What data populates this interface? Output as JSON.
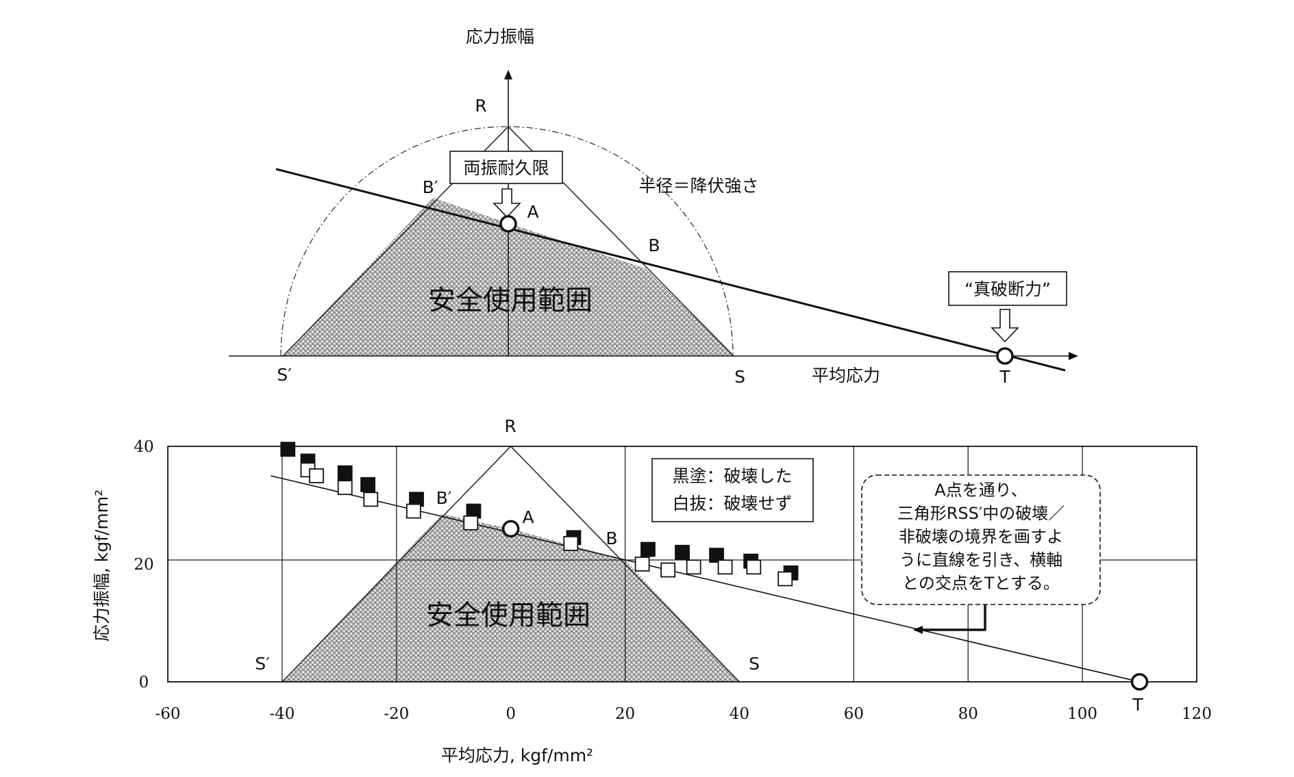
{
  "colors": {
    "ink": "#111111",
    "grid": "#222222",
    "shade": "#8c8c8c",
    "fill_black": "#111111",
    "fill_white": "#ffffff"
  },
  "concept": {
    "y_axis_label": "応力振幅",
    "x_axis_label": "平均応力",
    "points": {
      "R": "R",
      "B_prime": "B′",
      "A": "A",
      "B": "B",
      "S_prime": "S′",
      "S": "S",
      "T": "T"
    },
    "box_fatigue_limit": "両振耐久限",
    "box_true_fracture": "“真破断力”",
    "radius_label": "半径＝降伏強さ",
    "safe_zone": "安全使用範囲"
  },
  "chart_data": {
    "type": "scatter",
    "xlabel": "平均応力, kgf/mm²",
    "ylabel": "応力振幅, kgf/mm²",
    "xlim": [
      -60,
      120
    ],
    "ylim": [
      0,
      40
    ],
    "x_ticks": [
      "-60",
      "-40",
      "-20",
      "0",
      "20",
      "40",
      "60",
      "80",
      "100",
      "120"
    ],
    "y_ticks": [
      "40",
      "20",
      "0"
    ],
    "series": [
      {
        "name": "黒塗：破壊した",
        "marker": "filled-square",
        "x": [
          -39,
          -35.5,
          -29,
          -25,
          -16.5,
          -6.5,
          11,
          24,
          30,
          36,
          42,
          49
        ],
        "y": [
          39.5,
          37.5,
          35.5,
          33.5,
          31,
          29,
          24.5,
          22.5,
          22,
          21.5,
          20.5,
          18.5
        ]
      },
      {
        "name": "白抜：破壊せず",
        "marker": "open-square",
        "x": [
          -35.5,
          -34,
          -29,
          -24.5,
          -17,
          -7,
          10.5,
          23,
          27.5,
          32,
          37.5,
          42.5,
          48
        ],
        "y": [
          36,
          35,
          33,
          31,
          29,
          27,
          23.5,
          20,
          19,
          19.5,
          19.5,
          19.5,
          17.5
        ]
      }
    ],
    "trend_line": {
      "x": [
        -42,
        110
      ],
      "y": [
        35,
        0
      ]
    },
    "triangle": {
      "x": [
        -40,
        0,
        40
      ],
      "y": [
        0,
        40,
        0
      ]
    },
    "safe_region_polygon": {
      "x": [
        -40,
        -12,
        0,
        20,
        40
      ],
      "y": [
        0,
        28.5,
        26,
        20.7,
        0
      ]
    },
    "reference_lines": {
      "vertical_x": [
        -40,
        -20,
        20,
        60,
        80,
        100
      ],
      "horizontal_y": [
        20.7
      ]
    },
    "points": [
      {
        "label": "A",
        "x": 0,
        "y": 26
      },
      {
        "label": "T",
        "x": 110,
        "y": 0
      }
    ],
    "annotations": {
      "R": "R",
      "B_prime": "B′",
      "A": "A",
      "B": "B",
      "S_prime": "S′",
      "S": "S",
      "T": "T",
      "safe_zone": "安全使用範囲",
      "legend": [
        "黒塗：破壊した",
        "白抜：破壊せず"
      ],
      "note": [
        "A点を通り、",
        "三角形RSS′中の破壊／",
        "非破壊の境界を画すよ",
        "うに直線を引き、横軸",
        "との交点をTとする。"
      ]
    }
  }
}
